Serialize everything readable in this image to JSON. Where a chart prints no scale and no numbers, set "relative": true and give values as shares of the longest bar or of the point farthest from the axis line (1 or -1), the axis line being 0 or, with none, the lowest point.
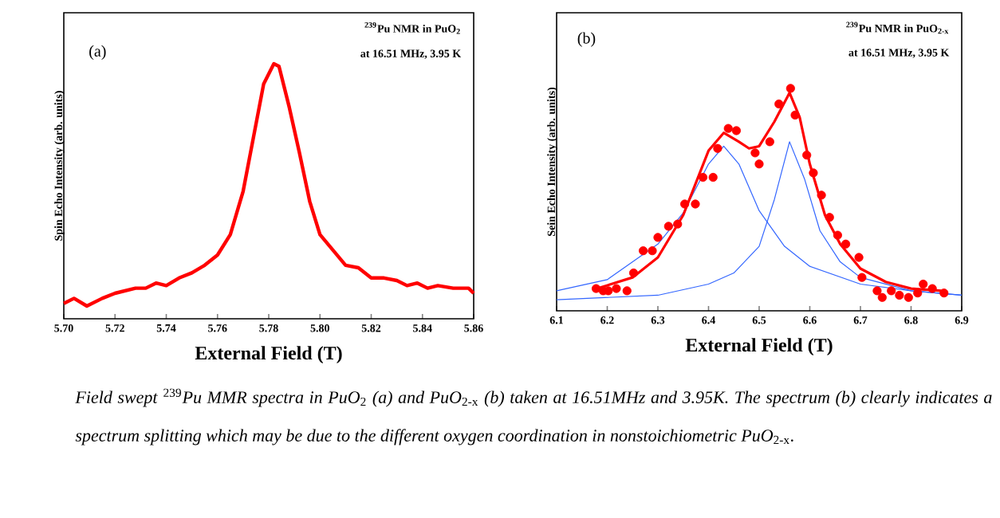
{
  "chart_data": [
    {
      "type": "line",
      "xlabel": "External Field (T)",
      "ylabel": "Spin Echo Intensity (arb. units)",
      "relative": true,
      "tick_labels": "x",
      "annotations": [
        "(a)",
        "$^{239}$Pu NMR in PuO$_{2}$",
        "at 16.51 MHz, 3.95 K"
      ],
      "xlim": [
        5.7,
        5.86
      ],
      "xticks": [
        {
          "value": 5.7,
          "label": "5.70"
        },
        {
          "value": 5.72,
          "label": "5.72"
        },
        {
          "value": 5.74,
          "label": "5.74"
        },
        {
          "value": 5.76,
          "label": "5.76"
        },
        {
          "value": 5.78,
          "label": "5.78"
        },
        {
          "value": 5.8,
          "label": "5.80"
        },
        {
          "value": 5.82,
          "label": "5.82"
        },
        {
          "value": 5.84,
          "label": "5.84"
        },
        {
          "value": 5.86,
          "label": "5.86"
        }
      ],
      "color": "#ff0000",
      "x": [
        5.7,
        5.704,
        5.709,
        5.715,
        5.72,
        5.728,
        5.732,
        5.736,
        5.74,
        5.745,
        5.75,
        5.755,
        5.76,
        5.765,
        5.77,
        5.774,
        5.778,
        5.782,
        5.784,
        5.788,
        5.792,
        5.796,
        5.8,
        5.805,
        5.81,
        5.815,
        5.82,
        5.825,
        5.83,
        5.834,
        5.838,
        5.842,
        5.846,
        5.852,
        5.858,
        5.86
      ],
      "values": [
        0.06,
        0.08,
        0.05,
        0.08,
        0.1,
        0.12,
        0.12,
        0.14,
        0.13,
        0.16,
        0.18,
        0.21,
        0.25,
        0.33,
        0.5,
        0.71,
        0.92,
        1.0,
        0.99,
        0.83,
        0.65,
        0.46,
        0.33,
        0.27,
        0.21,
        0.2,
        0.16,
        0.16,
        0.15,
        0.13,
        0.14,
        0.12,
        0.13,
        0.12,
        0.12,
        0.1
      ]
    },
    {
      "type": "line",
      "xlabel": "External Field (T)",
      "ylabel": "Sein Echo Intensity (arb. units)",
      "relative": true,
      "tick_labels": "x",
      "annotations": [
        "(b)",
        "$^{239}$Pu NMR in PuO$_{2-x}$",
        "at 16.51 MHz, 3.95 K",
        "*Field swept* $^{239}$*Pu MMR spectra in PuO*$_{2}$ *(a) and PuO*$_{2-x}$ *(b) taken at 16.51MHz and 3.95K. The spectrum (b) clearly indicates a spectrum splitting which may be due to the different oxygen coordination in nonstoichiometric PuO*$_{2-x}$*.*"
      ],
      "xlim": [
        6.1,
        6.9
      ],
      "xticks": [
        6.1,
        6.2,
        6.3,
        6.4,
        6.5,
        6.6,
        6.7,
        6.8,
        6.9
      ],
      "series": [
        {
          "type": "line",
          "color": "#3366ff",
          "x": [
            6.1,
            6.2,
            6.3,
            6.35,
            6.4,
            6.43,
            6.46,
            6.5,
            6.55,
            6.6,
            6.7,
            6.8,
            6.9
          ],
          "values": [
            0.09,
            0.14,
            0.3,
            0.44,
            0.66,
            0.74,
            0.66,
            0.45,
            0.29,
            0.2,
            0.12,
            0.09,
            0.07
          ]
        },
        {
          "type": "line",
          "color": "#3366ff",
          "x": [
            6.1,
            6.3,
            6.4,
            6.45,
            6.5,
            6.53,
            6.56,
            6.59,
            6.62,
            6.66,
            6.7,
            6.8,
            6.9
          ],
          "values": [
            0.05,
            0.07,
            0.12,
            0.17,
            0.29,
            0.5,
            0.76,
            0.59,
            0.36,
            0.22,
            0.15,
            0.09,
            0.07
          ]
        },
        {
          "type": "line",
          "color": "#ff0000",
          "x": [
            6.18,
            6.25,
            6.3,
            6.35,
            6.4,
            6.43,
            6.46,
            6.48,
            6.5,
            6.53,
            6.56,
            6.58,
            6.6,
            6.63,
            6.66,
            6.7,
            6.75,
            6.8,
            6.86
          ],
          "values": [
            0.1,
            0.15,
            0.24,
            0.43,
            0.72,
            0.8,
            0.76,
            0.73,
            0.74,
            0.85,
            0.98,
            0.87,
            0.66,
            0.43,
            0.3,
            0.19,
            0.13,
            0.1,
            0.09
          ]
        },
        {
          "type": "scatter",
          "marker": "circle",
          "color": "#ff0000",
          "x": [
            6.178,
            6.192,
            6.202,
            6.218,
            6.239,
            6.252,
            6.271,
            6.289,
            6.3,
            6.321,
            6.339,
            6.353,
            6.374,
            6.389,
            6.409,
            6.418,
            6.439,
            6.455,
            6.492,
            6.5,
            6.521,
            6.539,
            6.562,
            6.571,
            6.594,
            6.607,
            6.623,
            6.639,
            6.655,
            6.671,
            6.697,
            6.703,
            6.733,
            6.743,
            6.761,
            6.777,
            6.795,
            6.813,
            6.824,
            6.842,
            6.865
          ],
          "values": [
            0.1,
            0.09,
            0.09,
            0.1,
            0.09,
            0.17,
            0.27,
            0.27,
            0.33,
            0.38,
            0.39,
            0.48,
            0.48,
            0.6,
            0.6,
            0.73,
            0.82,
            0.81,
            0.71,
            0.66,
            0.76,
            0.93,
            1.0,
            0.88,
            0.7,
            0.62,
            0.52,
            0.42,
            0.34,
            0.3,
            0.24,
            0.15,
            0.09,
            0.06,
            0.09,
            0.07,
            0.06,
            0.08,
            0.12,
            0.1,
            0.08
          ]
        }
      ]
    }
  ]
}
